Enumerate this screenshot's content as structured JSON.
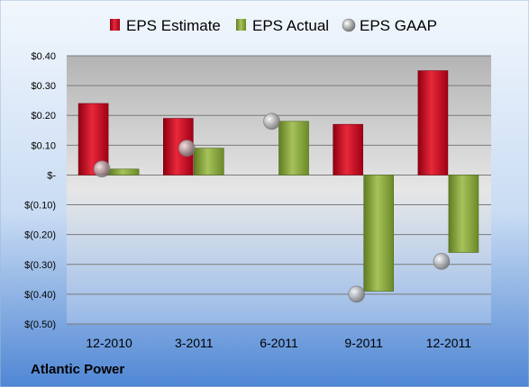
{
  "company": "Atlantic Power",
  "colors": {
    "estimate": "#c0001a",
    "actual": "#7a9a2e",
    "gaap": "#a8a8a8",
    "background_top": "#eaf2fb",
    "background_bottom": "#5b8fd6"
  },
  "chart_data": {
    "type": "bar",
    "categories": [
      "12-2010",
      "3-2011",
      "6-2011",
      "9-2011",
      "12-2011"
    ],
    "series": [
      {
        "name": "EPS Estimate",
        "kind": "bar",
        "values": [
          0.24,
          0.19,
          null,
          0.17,
          0.35
        ]
      },
      {
        "name": "EPS Actual",
        "kind": "bar",
        "values": [
          0.02,
          0.09,
          0.18,
          -0.39,
          -0.26
        ]
      },
      {
        "name": "EPS GAAP",
        "kind": "marker",
        "values": [
          0.02,
          0.09,
          0.18,
          -0.4,
          -0.29
        ]
      }
    ],
    "ylim": [
      -0.5,
      0.4
    ],
    "yticks": [
      {
        "value": 0.4,
        "label": "$0.40"
      },
      {
        "value": 0.3,
        "label": "$0.30"
      },
      {
        "value": 0.2,
        "label": "$0.20"
      },
      {
        "value": 0.1,
        "label": "$0.10"
      },
      {
        "value": 0.0,
        "label": "$-"
      },
      {
        "value": -0.1,
        "label": "$(0.10)"
      },
      {
        "value": -0.2,
        "label": "$(0.20)"
      },
      {
        "value": -0.3,
        "label": "$(0.30)"
      },
      {
        "value": -0.4,
        "label": "$(0.40)"
      },
      {
        "value": -0.5,
        "label": "$(0.50)"
      }
    ],
    "legend": "top",
    "grid": true
  }
}
